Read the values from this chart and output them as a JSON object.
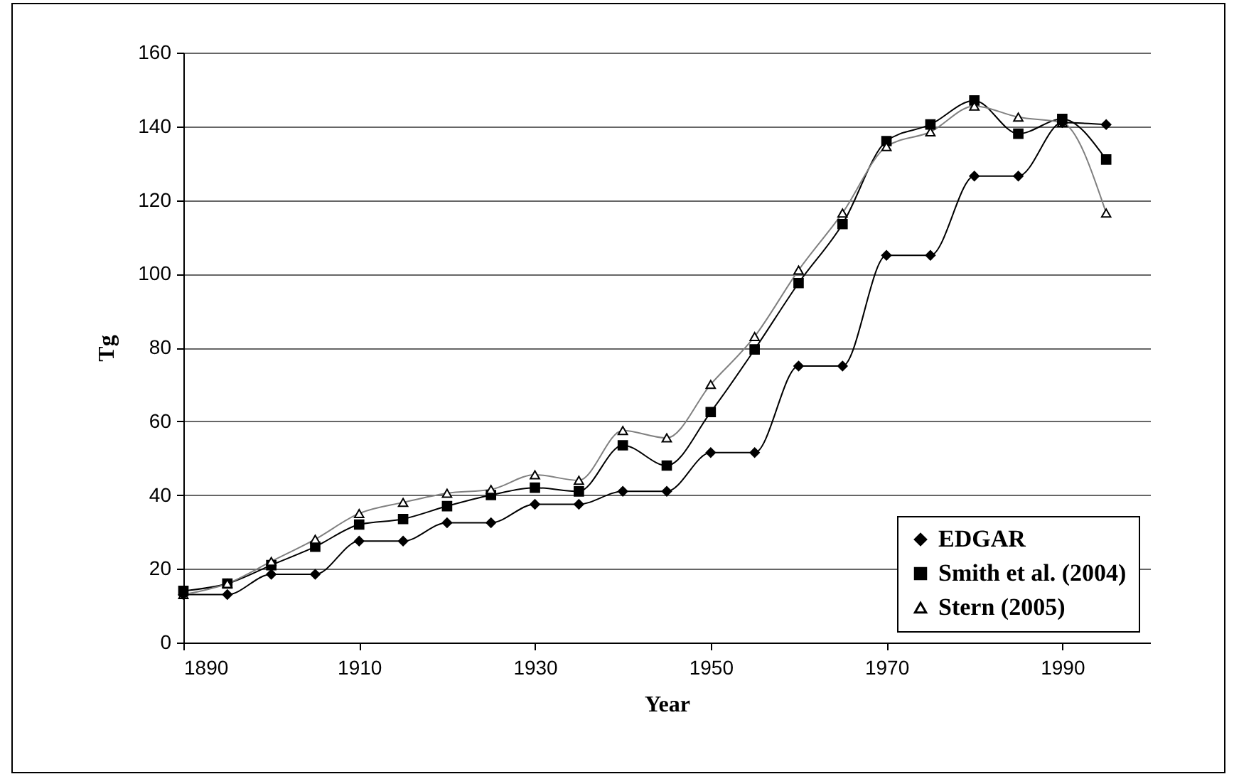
{
  "chart_data": {
    "type": "line",
    "xlabel": "Year",
    "ylabel": "Tg",
    "x": [
      1890,
      1895,
      1900,
      1905,
      1910,
      1915,
      1920,
      1925,
      1930,
      1935,
      1940,
      1945,
      1950,
      1955,
      1960,
      1965,
      1970,
      1975,
      1980,
      1985,
      1990,
      1995
    ],
    "series": [
      {
        "name": "EDGAR",
        "color": "#000000",
        "marker": "diamond",
        "values": [
          13,
          13,
          18.5,
          18.5,
          27.5,
          27.5,
          32.5,
          32.5,
          37.5,
          37.5,
          41,
          41,
          51.5,
          51.5,
          75,
          75,
          105,
          105,
          126.5,
          126.5,
          141,
          140.5
        ]
      },
      {
        "name": "Smith et al. (2004)",
        "color": "#000000",
        "marker": "square",
        "values": [
          14,
          16,
          21,
          26,
          32,
          33.5,
          37,
          40,
          42,
          41,
          53.5,
          48,
          62.5,
          79.5,
          97.5,
          113.5,
          136,
          140.5,
          147,
          138,
          142,
          131
        ]
      },
      {
        "name": "Stern (2005)",
        "color": "#808080",
        "marker": "triangle",
        "values": [
          13,
          16,
          22,
          28,
          35,
          38,
          40.5,
          41.5,
          45.5,
          44,
          57.5,
          55.5,
          70,
          83,
          101,
          116.5,
          134.5,
          138.5,
          145.5,
          142.5,
          141,
          116.5
        ]
      }
    ],
    "xlim": [
      1890,
      2000
    ],
    "xticks": [
      1890,
      1910,
      1930,
      1950,
      1970,
      1990
    ],
    "ylim": [
      0,
      160
    ],
    "yticks": [
      0,
      20,
      40,
      60,
      80,
      100,
      120,
      140,
      160
    ],
    "grid": "y",
    "legend": "bottom right",
    "line_style": "solid"
  }
}
